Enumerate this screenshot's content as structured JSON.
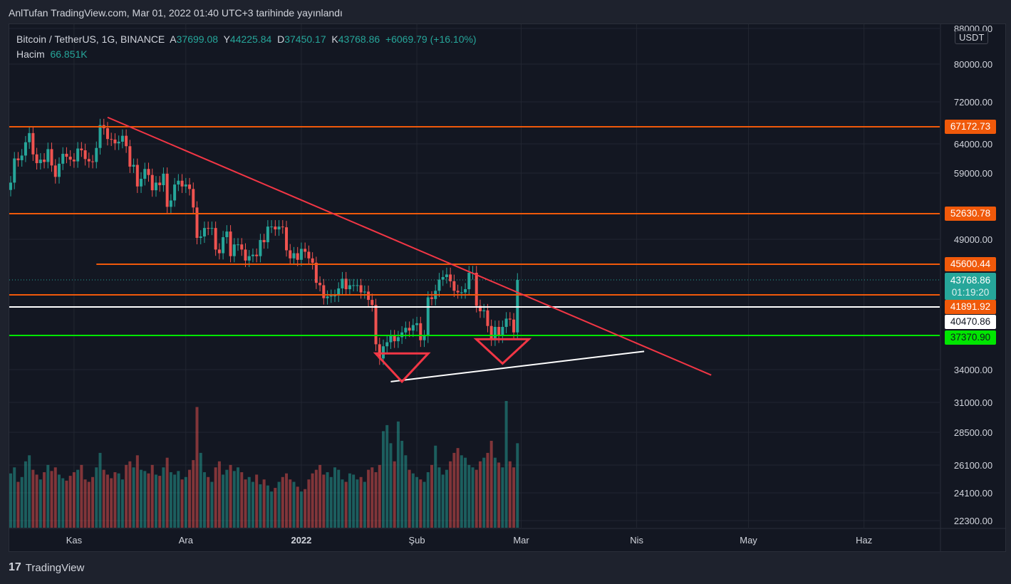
{
  "header": {
    "published": "AnlTufan TradingView.com, Mar 01, 2022 01:40 UTC+3 tarihinde yayınlandı"
  },
  "legend": {
    "symbol": "Bitcoin / TetherUS, 1G, BINANCE",
    "o_label": "A",
    "o": "37699.08",
    "h_label": "Y",
    "h": "44225.84",
    "l_label": "D",
    "l": "37450.17",
    "c_label": "K",
    "c": "43768.86",
    "change": "+6069.79 (+16.10%)",
    "vol_label": "Hacim",
    "vol": "66.851K"
  },
  "currency": "USDT",
  "footer": {
    "brand": "TradingView"
  },
  "chart_data": {
    "type": "candlestick",
    "start_date": "2021-10-15",
    "closes": [
      57500,
      61500,
      61200,
      62000,
      64300,
      66000,
      62200,
      60700,
      61300,
      60900,
      63100,
      60300,
      58400,
      60600,
      62300,
      61800,
      61300,
      61000,
      63200,
      62900,
      61400,
      61000,
      60900,
      63300,
      67500,
      66900,
      64900,
      64800,
      64100,
      64400,
      65500,
      63600,
      60100,
      60400,
      56900,
      58100,
      59700,
      58700,
      56300,
      57500,
      57100,
      58900,
      53700,
      54700,
      57200,
      57800,
      56900,
      57200,
      56500,
      53600,
      49200,
      49400,
      50600,
      50500,
      50600,
      47600,
      47100,
      49300,
      50100,
      46700,
      48300,
      48300,
      47600,
      46100,
      46700,
      46900,
      46700,
      48900,
      48600,
      50800,
      50800,
      50400,
      50800,
      50700,
      47500,
      46400,
      47100,
      46200,
      47700,
      47300,
      46400,
      45800,
      43400,
      43100,
      41500,
      41700,
      41800,
      41800,
      42700,
      43900,
      42600,
      43100,
      43100,
      43100,
      42200,
      42300,
      41300,
      40700,
      36500,
      35100,
      36300,
      36700,
      37300,
      36800,
      37200,
      37700,
      38200,
      37900,
      38500,
      38700,
      36900,
      37300,
      41600,
      41400,
      42400,
      43800,
      44100,
      44400,
      43600,
      42400,
      42200,
      42200,
      42600,
      44600,
      44600,
      40600,
      40000,
      40100,
      38400,
      37000,
      38300,
      37300,
      38300,
      39200,
      39100,
      37700,
      43768.86
    ],
    "volumes_k": [
      45,
      50,
      38,
      42,
      55,
      60,
      48,
      44,
      40,
      46,
      52,
      47,
      50,
      44,
      41,
      39,
      43,
      46,
      48,
      52,
      40,
      38,
      42,
      50,
      62,
      48,
      44,
      41,
      46,
      45,
      40,
      52,
      55,
      50,
      60,
      48,
      47,
      45,
      52,
      44,
      43,
      50,
      58,
      46,
      44,
      47,
      40,
      42,
      48,
      56,
      100,
      62,
      46,
      42,
      38,
      50,
      55,
      44,
      48,
      52,
      47,
      50,
      46,
      40,
      42,
      38,
      44,
      36,
      40,
      35,
      30,
      33,
      38,
      42,
      45,
      40,
      38,
      34,
      30,
      32,
      40,
      45,
      48,
      52,
      44,
      46,
      42,
      50,
      48,
      40,
      38,
      45,
      44,
      40,
      42,
      38,
      48,
      50,
      46,
      52,
      80,
      85,
      70,
      55,
      88,
      72,
      60,
      48,
      45,
      42,
      40,
      38,
      46,
      52,
      68,
      50,
      44,
      48,
      55,
      62,
      66,
      60,
      58,
      52,
      50,
      48,
      55,
      58,
      62,
      72,
      58,
      54,
      50,
      105,
      55,
      50,
      70
    ],
    "yaxis_ticks": [
      "88000.00",
      "80000.00",
      "72000.00",
      "64000.00",
      "59000.00",
      "49000.00",
      "34000.00",
      "31000.00",
      "28500.00",
      "26100.00",
      "24100.00",
      "22300.00"
    ],
    "xaxis_ticks": [
      {
        "label": "Kas",
        "date": "2021-11-01"
      },
      {
        "label": "Ara",
        "date": "2021-12-01"
      },
      {
        "label": "2022",
        "date": "2022-01-01"
      },
      {
        "label": "Şub",
        "date": "2022-02-01"
      },
      {
        "label": "Mar",
        "date": "2022-03-01"
      },
      {
        "label": "Nis",
        "date": "2022-04-01"
      },
      {
        "label": "May",
        "date": "2022-05-01"
      },
      {
        "label": "Haz",
        "date": "2022-06-01"
      }
    ],
    "levels": [
      {
        "price": 67172.73,
        "label": "67172.73",
        "color": "#f0590a"
      },
      {
        "price": 52630.78,
        "label": "52630.78",
        "color": "#f0590a"
      },
      {
        "price": 45600.44,
        "label": "45600.44",
        "color": "#f0590a",
        "start_day": 23
      },
      {
        "price": 41891.92,
        "label": "41891.92",
        "color": "#f0590a"
      },
      {
        "price": 40470.86,
        "label": "40470.86",
        "color": "#ffffff"
      },
      {
        "price": 37370.9,
        "label": "37370.90",
        "color": "#00e600"
      }
    ],
    "last_price": {
      "label": "43768.86",
      "countdown": "01:19:20",
      "color": "#26a69a"
    },
    "trendlines": [
      {
        "from": [
          26,
          69000
        ],
        "to": [
          188,
          33500
        ],
        "color": "#f23645"
      },
      {
        "from": [
          102,
          32900
        ],
        "to": [
          170,
          35800
        ],
        "color": "#ffffff"
      }
    ],
    "triangles": [
      {
        "day": 105,
        "top": 35600,
        "bottom": 32900
      },
      {
        "day": 132,
        "top": 37000,
        "bottom": 34600
      }
    ],
    "colors": {
      "up": "#26a69a",
      "down": "#ef5350"
    }
  }
}
